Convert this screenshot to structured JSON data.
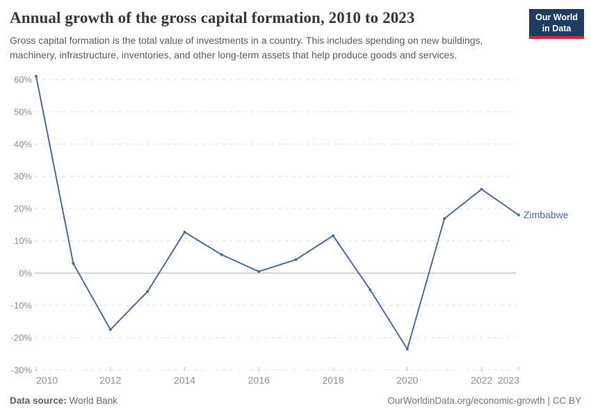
{
  "header": {
    "title": "Annual growth of the gross capital formation, 2010 to 2023",
    "subtitle_line1": "Gross capital formation is the total value of investments in a country. This includes spending on new buildings,",
    "subtitle_line2": "machinery, infrastructure, inventories, and other long-term assets that help produce goods and services."
  },
  "logo": {
    "line1": "Our World",
    "line2": "in Data",
    "bg_color": "#1d3d63",
    "accent_color": "#e0232e"
  },
  "footer": {
    "source_label": "Data source:",
    "source_value": " World Bank",
    "credit": "OurWorldinData.org/economic-growth | CC BY"
  },
  "chart_data": {
    "type": "line",
    "title": "Annual growth of the gross capital formation, 2010 to 2023",
    "xlabel": "",
    "ylabel": "",
    "x": [
      2010,
      2011,
      2012,
      2013,
      2014,
      2015,
      2016,
      2017,
      2018,
      2019,
      2020,
      2021,
      2022,
      2023
    ],
    "series": [
      {
        "name": "Zimbabwe",
        "color": "#4c6a9c",
        "values": [
          61,
          3,
          -17.5,
          -5.7,
          12.7,
          5.7,
          0.5,
          4.2,
          11.6,
          -5.2,
          -23.5,
          16.9,
          26,
          18
        ]
      }
    ],
    "yticks": [
      60,
      50,
      40,
      30,
      20,
      10,
      0,
      -10,
      -20,
      -30
    ],
    "y_tick_suffix": "%",
    "xticks": [
      2010,
      2012,
      2014,
      2016,
      2018,
      2020,
      2022,
      2023
    ],
    "ylim": [
      -30,
      61
    ],
    "grid": true,
    "grid_style": "dashed",
    "zero_line": true,
    "legend_position": "end-of-line",
    "colors": {
      "line": "#4c6a9c",
      "gridline": "#dcdcdc",
      "zero_line": "#a8a8a8",
      "axis_label": "#8f8f8f",
      "tick_mark": "#bbbbbb"
    }
  }
}
